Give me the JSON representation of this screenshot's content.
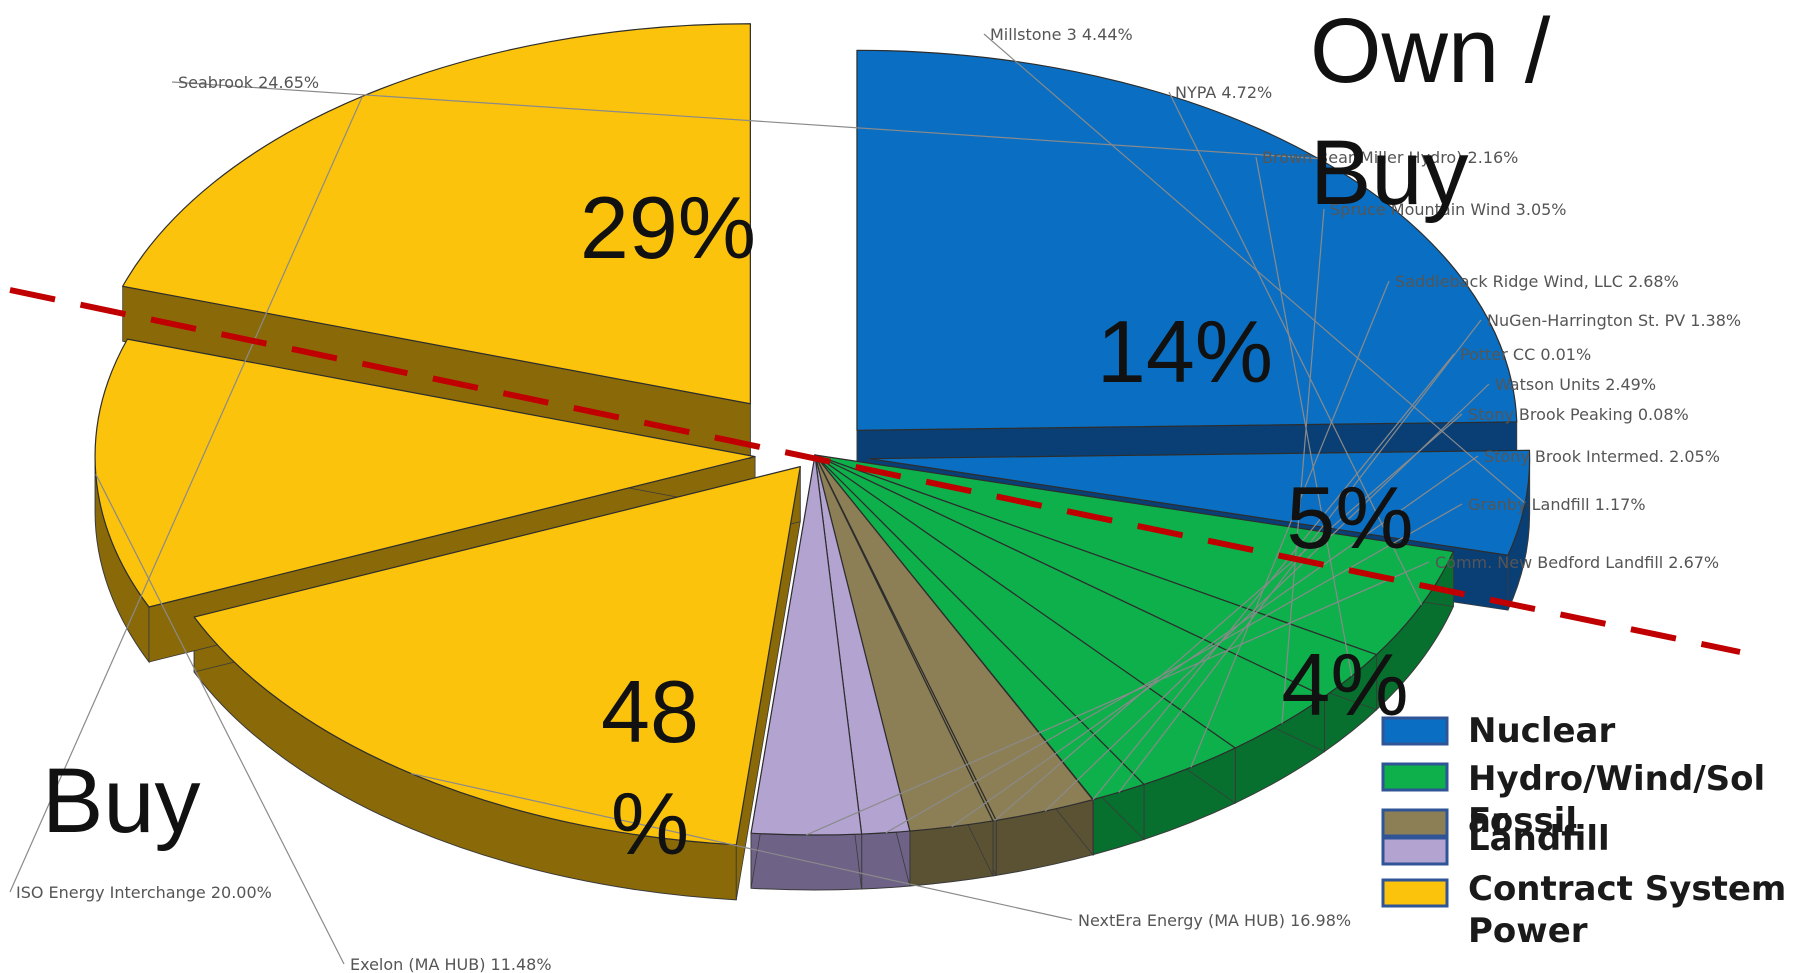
{
  "chart_data": {
    "type": "pie",
    "title": "",
    "slices": [
      {
        "label": "Seabrook 24.65%",
        "value": 24.65,
        "group": "Nuclear",
        "color": "#0a6fc2",
        "side": "#0a3f75"
      },
      {
        "label": "Millstone 3 4.44%",
        "value": 4.44,
        "group": "Nuclear",
        "color": "#0a6fc2",
        "side": "#0a3f75"
      },
      {
        "label": "NYPA 4.72%",
        "value": 4.72,
        "group": "Hydro/Wind/Solar",
        "color": "#0db04b",
        "side": "#07702e"
      },
      {
        "label": "Brown Bear/Miller Hydro) 2.16%",
        "value": 2.16,
        "group": "Hydro/Wind/Solar",
        "color": "#0db04b",
        "side": "#07702e"
      },
      {
        "label": "Spruce Mountain Wind 3.05%",
        "value": 3.05,
        "group": "Hydro/Wind/Solar",
        "color": "#0db04b",
        "side": "#07702e"
      },
      {
        "label": "Saddleback Ridge Wind, LLC 2.68%",
        "value": 2.68,
        "group": "Hydro/Wind/Solar",
        "color": "#0db04b",
        "side": "#07702e"
      },
      {
        "label": "NuGen-Harrington St. PV 1.38%",
        "value": 1.38,
        "group": "Hydro/Wind/Solar",
        "color": "#0db04b",
        "side": "#07702e"
      },
      {
        "label": "Potter CC 0.01%",
        "value": 0.01,
        "group": "Fossil",
        "color": "#8c7f55",
        "side": "#5b5234"
      },
      {
        "label": "Watson Units 2.49%",
        "value": 2.49,
        "group": "Fossil",
        "color": "#8c7f55",
        "side": "#5b5234"
      },
      {
        "label": "Stony Brook Peaking 0.08%",
        "value": 0.08,
        "group": "Fossil",
        "color": "#8c7f55",
        "side": "#5b5234"
      },
      {
        "label": "Stony Brook Intermed. 2.05%",
        "value": 2.05,
        "group": "Fossil",
        "color": "#8c7f55",
        "side": "#5b5234"
      },
      {
        "label": "Granby Landfill 1.17%",
        "value": 1.17,
        "group": "Landfill",
        "color": "#b3a3d1",
        "side": "#6e6287"
      },
      {
        "label": "Comm. New Bedford Landfill 2.67%",
        "value": 2.67,
        "group": "Landfill",
        "color": "#b3a3d1",
        "side": "#6e6287"
      },
      {
        "label": "NextEra Energy (MA HUB) 16.98%",
        "value": 16.98,
        "group": "Contract System Power",
        "color": "#fcc30c",
        "side": "#8a6a08"
      },
      {
        "label": "Exelon (MA HUB) 11.48%",
        "value": 11.48,
        "group": "Contract System Power",
        "color": "#fcc30c",
        "side": "#8a6a08"
      },
      {
        "label": "ISO Energy Interchange 20.00%",
        "value": 20.0,
        "group": "Contract System Power",
        "color": "#fcc30c",
        "side": "#8a6a08"
      }
    ],
    "group_totals": [
      {
        "label": "29%",
        "group": "Nuclear"
      },
      {
        "label": "14%",
        "group": "Hydro/Wind/Solar"
      },
      {
        "label": "5%",
        "group": "Fossil"
      },
      {
        "label": "4%",
        "group": "Landfill"
      },
      {
        "label": "48\n%",
        "group": "Contract System Power"
      }
    ],
    "legend": {
      "position": "bottom-right",
      "items": [
        {
          "label": "Nuclear",
          "color": "#0a6fc2"
        },
        {
          "label": "Hydro/Wind/Sol\nar",
          "color": "#0db04b"
        },
        {
          "label": "Fossil",
          "color": "#8c7f55"
        },
        {
          "label": "Landfill",
          "color": "#b3a3d1"
        },
        {
          "label": "Contract System\nPower",
          "color": "#fcc30c"
        }
      ]
    },
    "annotations": [
      "Own /\nBuy",
      "Buy"
    ],
    "divider_color": "#c00000"
  }
}
